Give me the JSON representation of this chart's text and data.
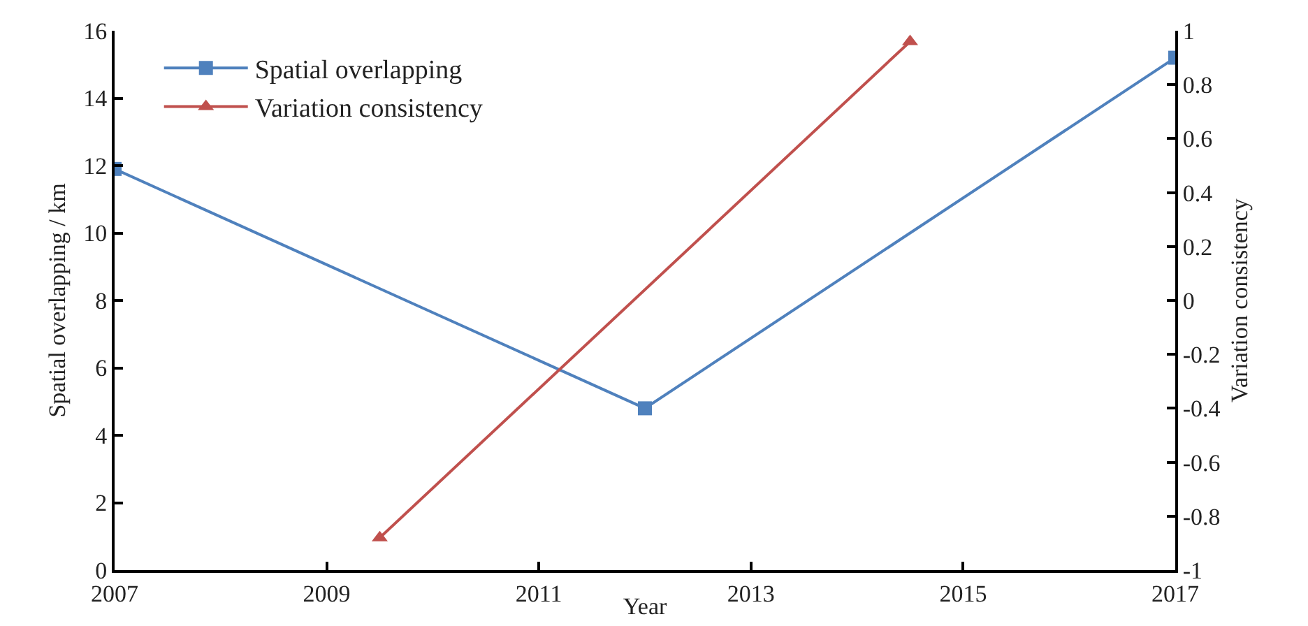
{
  "chart_data": {
    "type": "line",
    "xlabel": "Year",
    "ylabel": "Spatial overlapping / km",
    "y2label": "Variation consistency",
    "xlim": [
      2007,
      2017
    ],
    "xticks": [
      2007,
      2009,
      2011,
      2013,
      2015,
      2017
    ],
    "ylim": [
      0,
      16
    ],
    "yticks": [
      0,
      2,
      4,
      6,
      8,
      10,
      12,
      14,
      16
    ],
    "y2lim": [
      -1,
      1
    ],
    "y2ticks": [
      -1,
      -0.8,
      -0.6,
      -0.4,
      -0.2,
      0,
      0.2,
      0.4,
      0.6,
      0.8,
      1
    ],
    "grid": false,
    "legend": "top left",
    "series": [
      {
        "name": "Spatial overlapping",
        "color": "#4f81bd",
        "marker": "square",
        "x": [
          2007,
          2012,
          2017
        ],
        "values": [
          11.9,
          4.8,
          15.2
        ]
      },
      {
        "name": "Variation consistency",
        "color": "#c0504d",
        "marker": "triangle",
        "axis": "y2",
        "x": [
          2009.5,
          2014.5
        ],
        "values": [
          -0.88,
          0.96
        ]
      }
    ]
  }
}
